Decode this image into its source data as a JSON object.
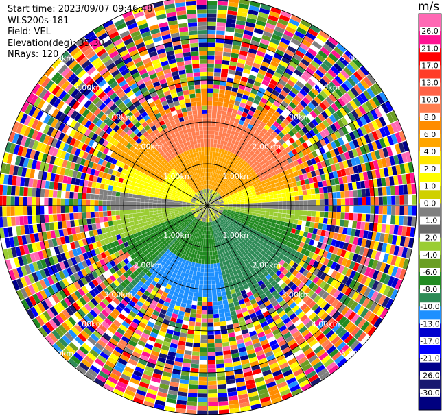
{
  "info": {
    "start_time": "Start time: 2023/09/07 09:46:48",
    "site": "WLS200s-181",
    "field": "Field: VEL",
    "elevation": "Elevation(deg): 35.30",
    "nrays": "NRays: 120"
  },
  "chart_data": {
    "type": "ppi",
    "field": "VEL",
    "elevation_deg": 35.3,
    "nrays": 120,
    "range_rings": [
      {
        "range_km": 1.0,
        "labels": [
          "1.00km",
          "1.00km",
          "1.00km",
          "1.00km"
        ]
      },
      {
        "range_km": 2.0,
        "labels": [
          "2.00km",
          "2.00km",
          "2.00km",
          "2.00km"
        ]
      },
      {
        "range_km": 3.0,
        "labels": [
          "3.00km",
          "3.00km",
          "3.00km",
          "3.00km"
        ]
      },
      {
        "range_km": 4.0,
        "labels": [
          "4.00km",
          "4.00km",
          "4.00km",
          "4.00km"
        ]
      },
      {
        "range_km": 5.0,
        "labels": [
          "5.00km",
          "5.00km",
          "5.00km",
          "5.00km"
        ]
      }
    ],
    "colorbar": {
      "unit": "m/s",
      "ticks": [
        "26.0",
        "21.0",
        "17.0",
        "13.0",
        "10.0",
        "8.0",
        "6.0",
        "4.0",
        "2.0",
        "1.0",
        "0.0",
        "-1.0",
        "-2.0",
        "-4.0",
        "-6.0",
        "-8.0",
        "-10.0",
        "-13.0",
        "-17.0",
        "-21.0",
        "-26.0",
        "-30.0"
      ],
      "colors": [
        "#ff69b4",
        "#ff1493",
        "#ff0000",
        "#ff3c28",
        "#ff6347",
        "#ff7f50",
        "#ff8c00",
        "#ffa500",
        "#ffe600",
        "#ffff00",
        "#d0d000",
        "#808080",
        "#6b6b6b",
        "#9acd32",
        "#6b9e23",
        "#228b22",
        "#2e8b57",
        "#1e90ff",
        "#0000cd",
        "#0000ff",
        "#00008b",
        "#191970",
        "#000080"
      ]
    }
  }
}
